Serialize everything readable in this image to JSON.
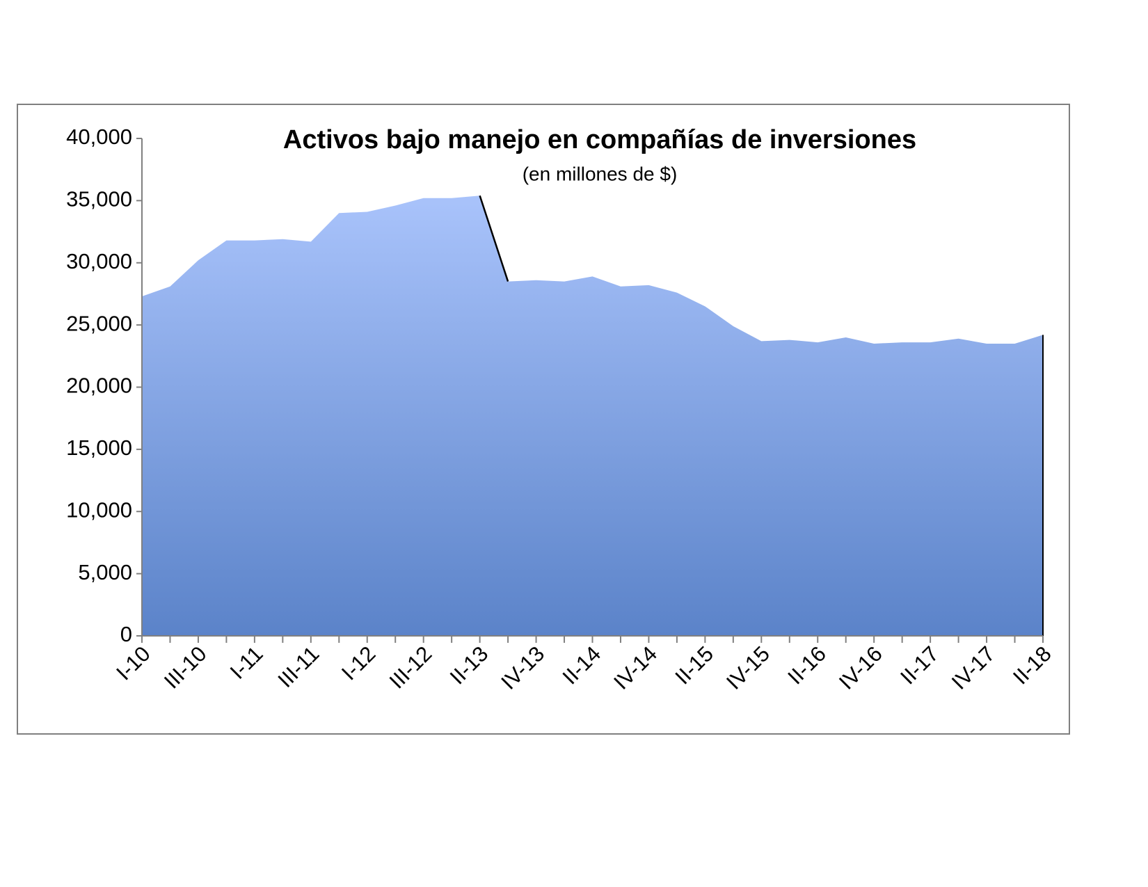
{
  "chart_data": {
    "type": "area",
    "title": "Activos bajo manejo en compañías de inversiones",
    "subtitle": "(en millones de $)",
    "categories": [
      "I-10",
      null,
      "III-10",
      null,
      "I-11",
      null,
      "III-11",
      null,
      "I-12",
      null,
      "III-12",
      null,
      "II-13",
      null,
      "IV-13",
      null,
      "II-14",
      null,
      "IV-14",
      null,
      "II-15",
      null,
      "IV-15",
      null,
      "II-16",
      null,
      "IV-16",
      null,
      "II-17",
      null,
      "IV-17",
      null,
      "II-18"
    ],
    "values": [
      27300,
      28100,
      30200,
      31800,
      31800,
      31900,
      31700,
      34000,
      34100,
      34600,
      35200,
      35200,
      35400,
      28500,
      28600,
      28500,
      28900,
      28100,
      28200,
      27600,
      26500,
      24900,
      23700,
      23800,
      23600,
      24000,
      23500,
      23600,
      23600,
      23900,
      23500,
      23500,
      24200
    ],
    "color_top": "#a9c3fb",
    "color_bottom": "#5b83c9",
    "ylim": [
      0,
      40000
    ],
    "yticks": [
      0,
      {
        "value": 5000,
        "label": "5,000"
      },
      {
        "value": 10000,
        "label": "10,000"
      },
      {
        "value": 15000,
        "label": "15,000"
      },
      {
        "value": 20000,
        "label": "20,000"
      },
      {
        "value": 25000,
        "label": "25,000"
      },
      {
        "value": 30000,
        "label": "30,000"
      },
      {
        "value": 35000,
        "label": "35,000"
      },
      {
        "value": 40000,
        "label": "40,000"
      }
    ]
  }
}
